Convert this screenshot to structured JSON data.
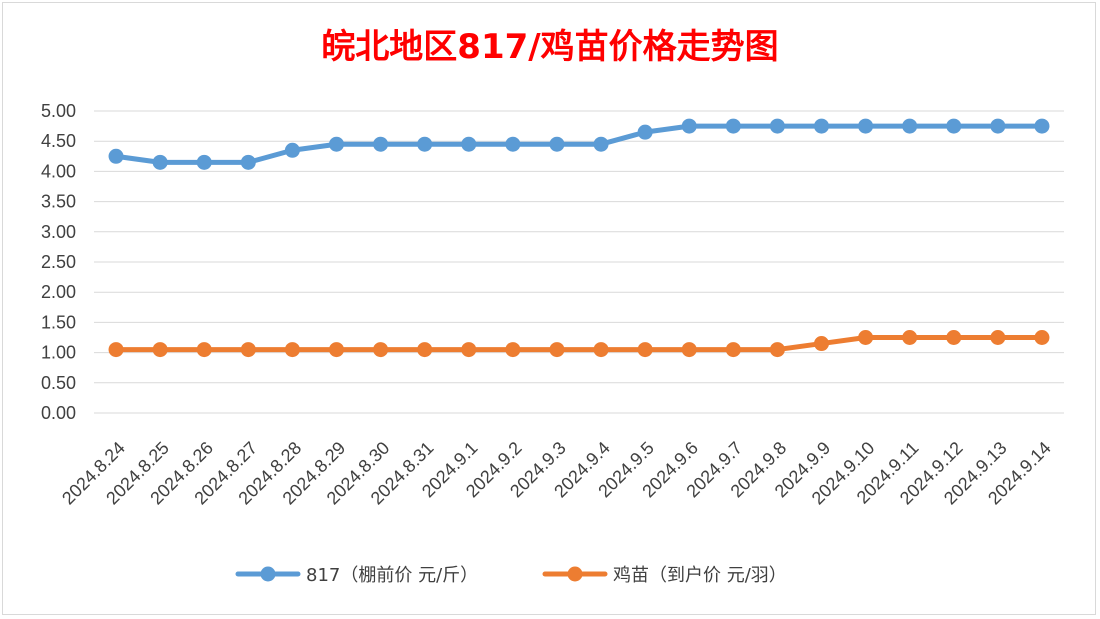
{
  "chart_data": {
    "type": "line",
    "title": "皖北地区817/鸡苗价格走势图",
    "categories": [
      "2024.8.24",
      "2024.8.25",
      "2024.8.26",
      "2024.8.27",
      "2024.8.28",
      "2024.8.29",
      "2024.8.30",
      "2024.8.31",
      "2024.9.1",
      "2024.9.2",
      "2024.9.3",
      "2024.9.4",
      "2024.9.5",
      "2024.9.6",
      "2024.9.7",
      "2024.9.8",
      "2024.9.9",
      "2024.9.10",
      "2024.9.11",
      "2024.9.12",
      "2024.9.13",
      "2024.9.14"
    ],
    "series": [
      {
        "name": "817（棚前价 元/斤）",
        "color": "#5b9bd5",
        "values": [
          4.25,
          4.15,
          4.15,
          4.15,
          4.35,
          4.45,
          4.45,
          4.45,
          4.45,
          4.45,
          4.45,
          4.45,
          4.65,
          4.75,
          4.75,
          4.75,
          4.75,
          4.75,
          4.75,
          4.75,
          4.75,
          4.75
        ]
      },
      {
        "name": "鸡苗（到户价 元/羽）",
        "color": "#ed7d31",
        "values": [
          1.05,
          1.05,
          1.05,
          1.05,
          1.05,
          1.05,
          1.05,
          1.05,
          1.05,
          1.05,
          1.05,
          1.05,
          1.05,
          1.05,
          1.05,
          1.05,
          1.15,
          1.25,
          1.25,
          1.25,
          1.25,
          1.25
        ]
      }
    ],
    "y_ticks": [
      "0.00",
      "0.50",
      "1.00",
      "1.50",
      "2.00",
      "2.50",
      "3.00",
      "3.50",
      "4.00",
      "4.50",
      "5.00"
    ],
    "ylim": [
      0,
      5
    ],
    "grid": true,
    "legend_position": "bottom"
  }
}
